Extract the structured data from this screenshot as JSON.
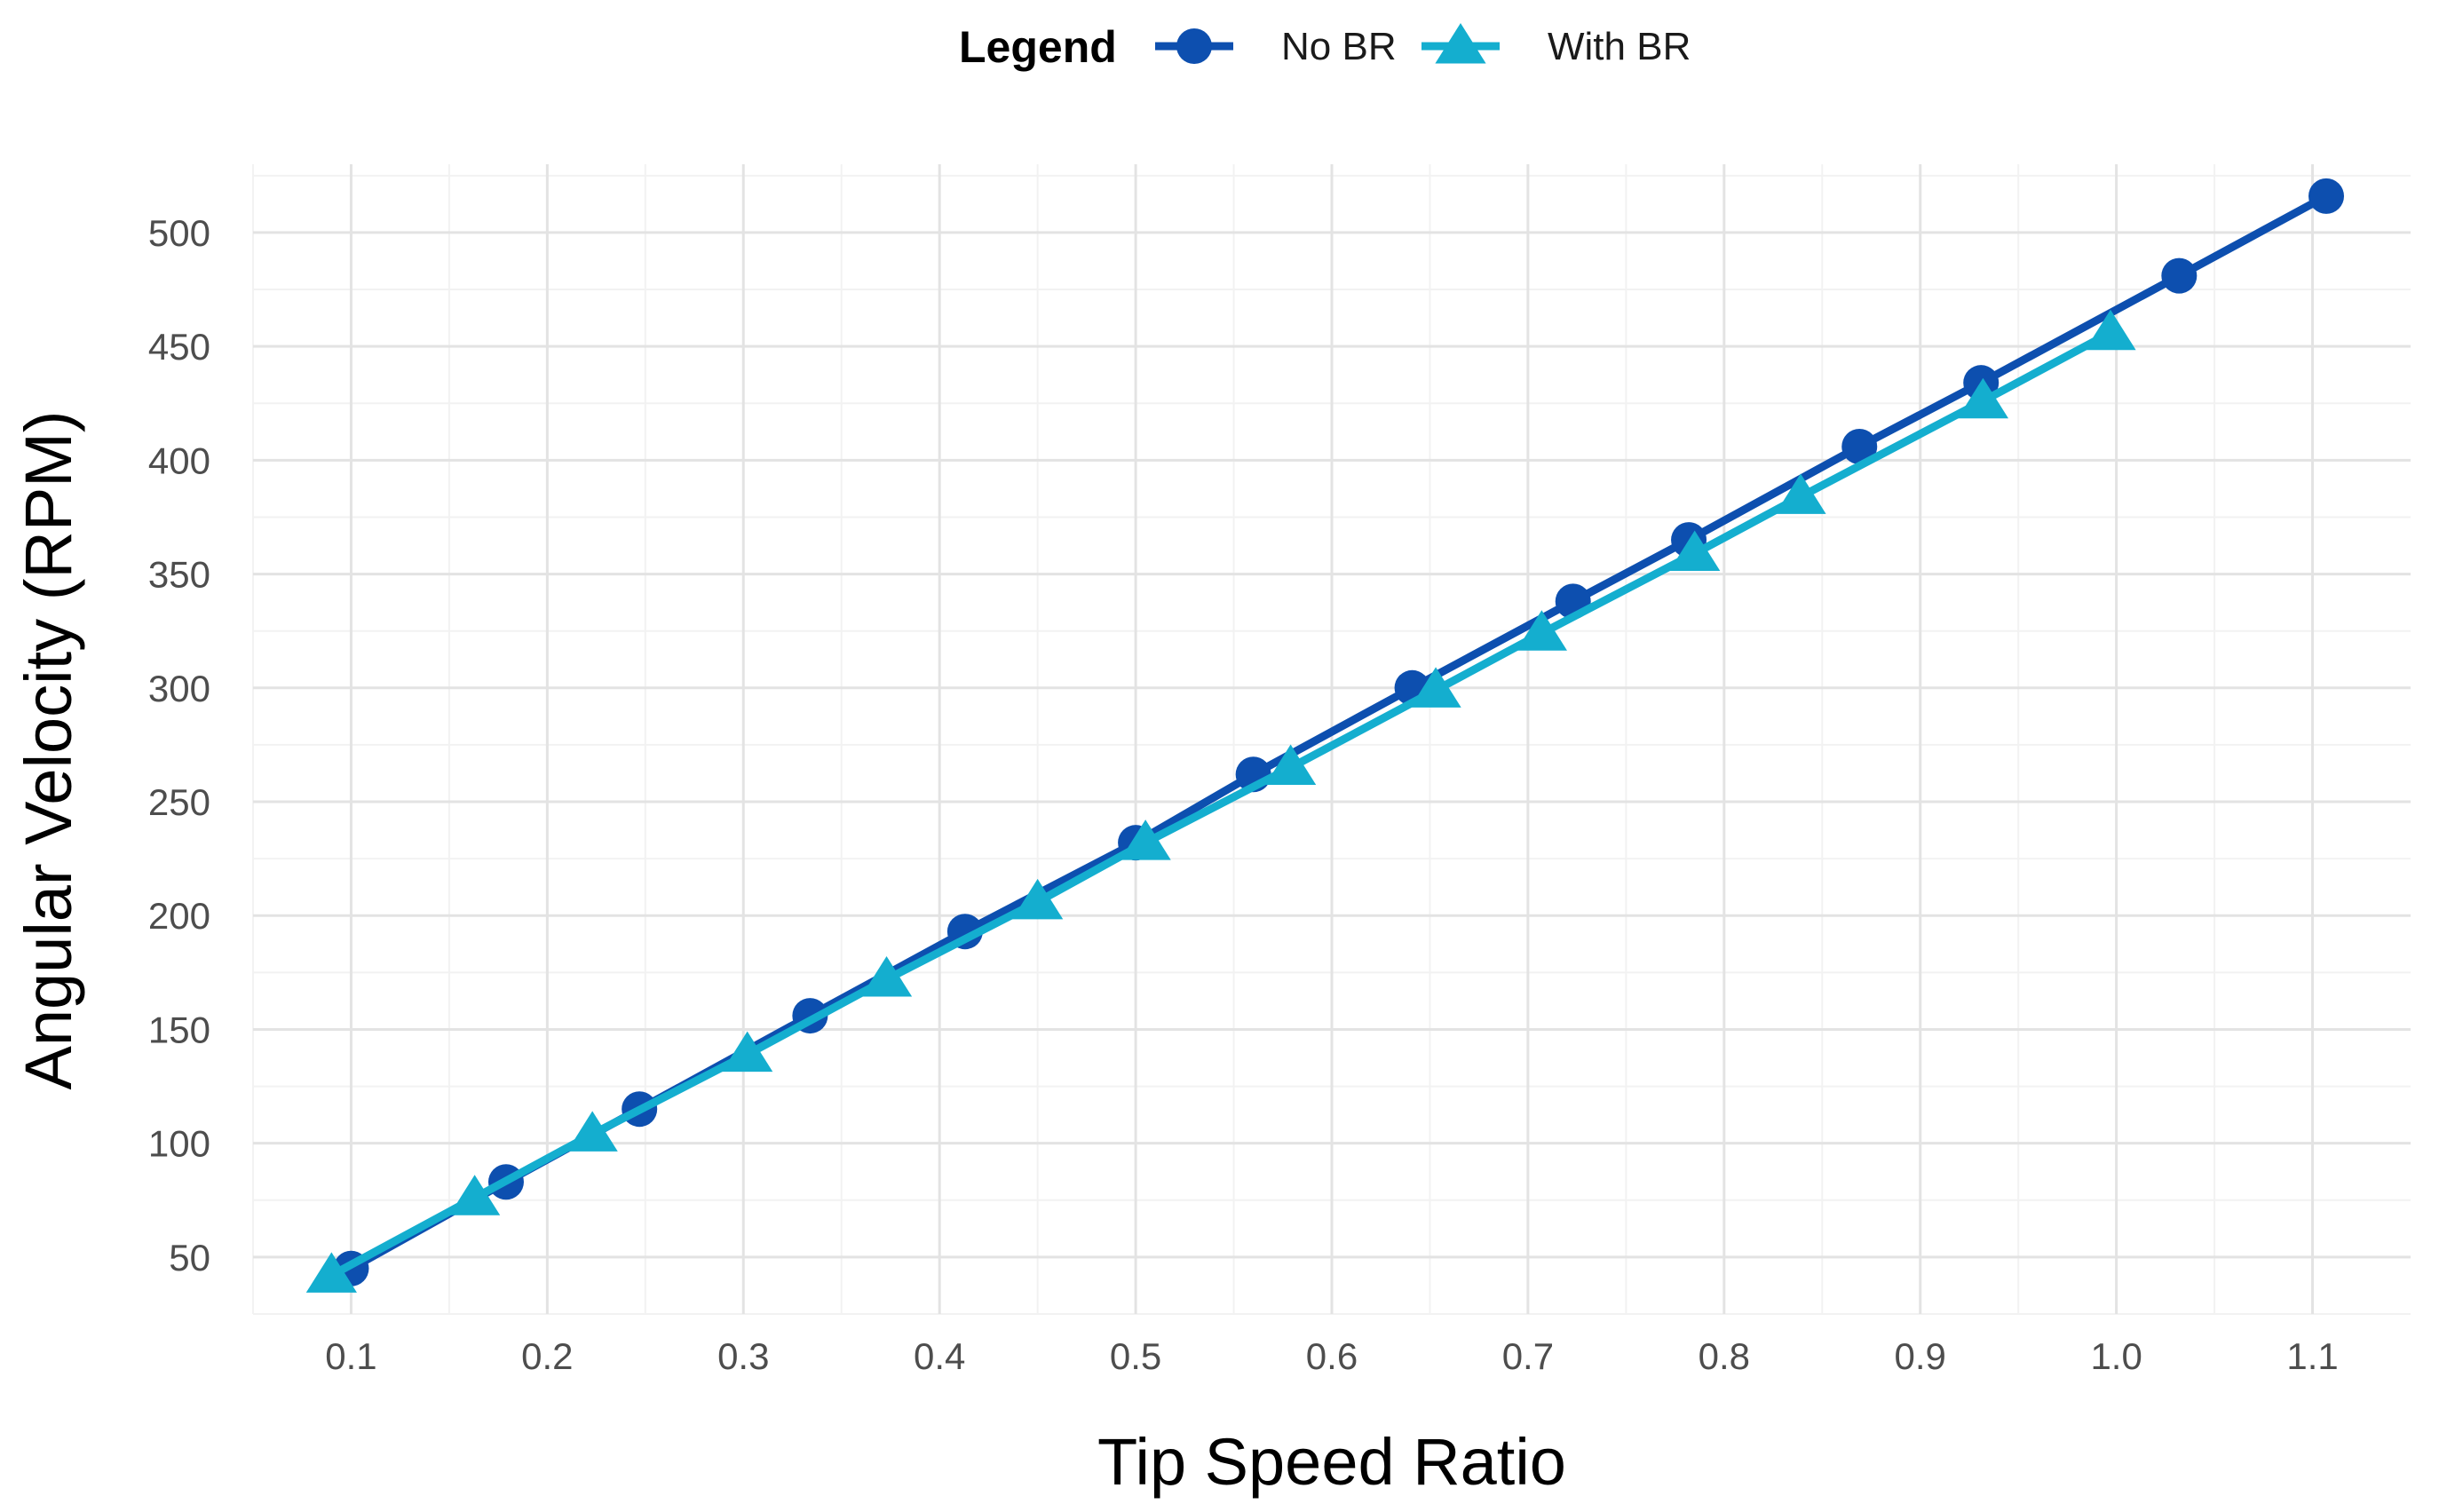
{
  "chart_data": {
    "type": "line",
    "xlabel": "Tip Speed Ratio",
    "ylabel": "Angular Velocity (RPM)",
    "xlim": [
      0.05,
      1.15
    ],
    "ylim": [
      25,
      530
    ],
    "x_ticks": [
      0.1,
      0.2,
      0.3,
      0.4,
      0.5,
      0.6,
      0.7,
      0.8,
      0.9,
      1.0,
      1.1
    ],
    "x_tick_labels": [
      "0.1",
      "0.2",
      "0.3",
      "0.4",
      "0.5",
      "0.6",
      "0.7",
      "0.8",
      "0.9",
      "1.0",
      "1.1"
    ],
    "y_ticks": [
      50,
      100,
      150,
      200,
      250,
      300,
      350,
      400,
      450,
      500
    ],
    "y_tick_labels": [
      "50",
      "100",
      "150",
      "200",
      "250",
      "300",
      "350",
      "400",
      "450",
      "500"
    ],
    "grid": true,
    "legend": {
      "title": "Legend",
      "position": "top"
    },
    "series": [
      {
        "name": "No BR",
        "color": "#0D4FAF",
        "marker": "circle",
        "x": [
          0.1,
          0.179,
          0.247,
          0.334,
          0.413,
          0.5,
          0.56,
          0.641,
          0.723,
          0.782,
          0.869,
          0.931,
          1.032,
          1.107
        ],
        "y": [
          45,
          83,
          115,
          156,
          193,
          232,
          262,
          300,
          338,
          365,
          406,
          434,
          481,
          516
        ]
      },
      {
        "name": "With BR",
        "color": "#14AECF",
        "marker": "triangle",
        "x": [
          0.09,
          0.163,
          0.223,
          0.302,
          0.373,
          0.45,
          0.505,
          0.579,
          0.653,
          0.707,
          0.785,
          0.839,
          0.932,
          0.997
        ],
        "y": [
          42,
          76,
          104,
          139,
          172,
          206,
          232,
          265,
          299,
          324,
          359,
          384,
          426,
          456
        ]
      }
    ]
  }
}
